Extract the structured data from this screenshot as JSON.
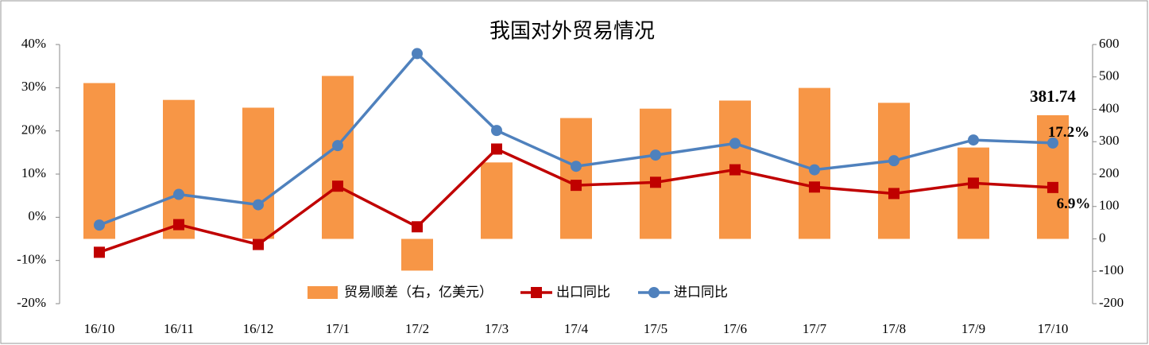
{
  "chart_data": {
    "type": "bar_line",
    "title": "我国对外贸易情况",
    "categories": [
      "16/10",
      "16/11",
      "16/12",
      "17/1",
      "17/2",
      "17/3",
      "17/4",
      "17/5",
      "17/6",
      "17/7",
      "17/8",
      "17/9",
      "17/10"
    ],
    "series": [
      {
        "name": "贸易顺差（右，亿美元）",
        "type": "bar",
        "axis": "y2",
        "color": "#f79646",
        "values": [
          481,
          429,
          405,
          503,
          -98,
          236,
          373,
          402,
          427,
          466,
          420,
          282,
          381.74
        ],
        "value_labels": [
          null,
          null,
          null,
          null,
          null,
          null,
          null,
          null,
          null,
          null,
          null,
          null,
          "381.74"
        ],
        "label_color": "#000000"
      },
      {
        "name": "出口同比",
        "type": "line",
        "marker": "square",
        "color": "#c00000",
        "values": [
          -8.1,
          -1.7,
          -6.3,
          7.2,
          -2.2,
          15.8,
          7.4,
          8.1,
          11.0,
          7.0,
          5.5,
          7.9,
          6.9
        ],
        "value_labels": [
          null,
          null,
          null,
          null,
          null,
          null,
          null,
          null,
          null,
          null,
          null,
          null,
          "6.9%"
        ],
        "label_color": "#c00000"
      },
      {
        "name": "进口同比",
        "type": "line",
        "marker": "circle",
        "color": "#4f81bd",
        "values": [
          -1.8,
          5.3,
          2.9,
          16.6,
          37.9,
          20.1,
          11.8,
          14.4,
          17.1,
          11.0,
          13.1,
          17.9,
          17.2
        ],
        "value_labels": [
          null,
          null,
          null,
          null,
          null,
          null,
          null,
          null,
          null,
          null,
          null,
          null,
          "17.2%"
        ],
        "label_color": "#4f81bd"
      }
    ],
    "ylim": [
      -20,
      40
    ],
    "yticks": [
      {
        "value": -20,
        "label": "-20%"
      },
      {
        "value": -10,
        "label": "-10%"
      },
      {
        "value": 0,
        "label": "0%"
      },
      {
        "value": 10,
        "label": "10%"
      },
      {
        "value": 20,
        "label": "20%"
      },
      {
        "value": 30,
        "label": "30%"
      },
      {
        "value": 40,
        "label": "40%"
      }
    ],
    "y2lim": [
      -200,
      600
    ],
    "y2ticks": [
      -200,
      -100,
      0,
      100,
      200,
      300,
      400,
      500,
      600
    ],
    "legend": "bottom"
  }
}
